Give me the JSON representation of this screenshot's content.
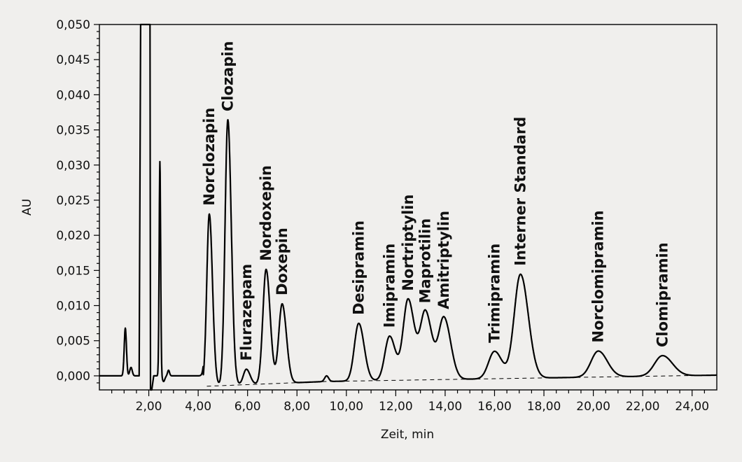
{
  "chart_data": {
    "type": "line",
    "xlabel": "Zeit, min",
    "ylabel": "AU",
    "xlim": [
      0,
      25
    ],
    "ylim": [
      -0.002,
      0.05
    ],
    "x_ticks": [
      "2,00",
      "4,00",
      "6,00",
      "8,00",
      "10,00",
      "12,00",
      "14,00",
      "16,00",
      "18,00",
      "20,00",
      "22,00",
      "24,00"
    ],
    "y_ticks": [
      "0,000",
      "0,005",
      "0,010",
      "0,015",
      "0,020",
      "0,025",
      "0,030",
      "0,035",
      "0,040",
      "0,045",
      "0,050"
    ],
    "baseline_style": "dashed",
    "colors": {
      "line": "#000000",
      "background": "#f0efed"
    },
    "solvent_front": [
      {
        "t": 1.05,
        "h": 0.0068
      },
      {
        "t": 1.2,
        "h": 0.0012
      },
      {
        "t": 1.8,
        "h": 0.05,
        "clipped": true
      },
      {
        "t": 2.45,
        "h": 0.0305
      },
      {
        "t": 2.8,
        "h": 0.0008
      },
      {
        "t": 9.2,
        "h": 0.0008
      }
    ],
    "peaks": [
      {
        "name": "Norclozapin",
        "t": 4.45,
        "h": 0.0245
      },
      {
        "name": "Clozapin",
        "t": 5.2,
        "h": 0.0378
      },
      {
        "name": "Flurazepam",
        "t": 5.95,
        "h": 0.0022
      },
      {
        "name": "Nordoxepin",
        "t": 6.75,
        "h": 0.0163
      },
      {
        "name": "Doxepin",
        "t": 7.4,
        "h": 0.0113
      },
      {
        "name": "Desipramin",
        "t": 10.5,
        "h": 0.0082
      },
      {
        "name": "Imipramin",
        "t": 11.75,
        "h": 0.0063
      },
      {
        "name": "Nortriptylin",
        "t": 12.5,
        "h": 0.0115
      },
      {
        "name": "Maprotilin",
        "t": 13.2,
        "h": 0.0097
      },
      {
        "name": "Amitriptylin",
        "t": 13.95,
        "h": 0.0088
      },
      {
        "name": "Trimipramin",
        "t": 16.0,
        "h": 0.0039
      },
      {
        "name": "Interner Standard",
        "t": 17.05,
        "h": 0.0148
      },
      {
        "name": "Norclomipramin",
        "t": 20.2,
        "h": 0.0037
      },
      {
        "name": "Clomipramin",
        "t": 22.8,
        "h": 0.0029
      }
    ]
  }
}
